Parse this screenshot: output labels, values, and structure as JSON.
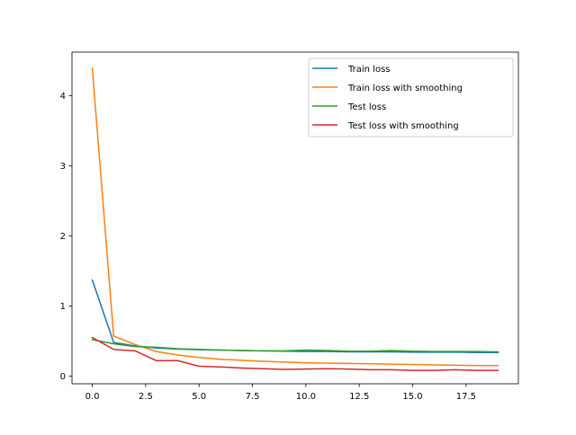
{
  "chart_data": {
    "type": "line",
    "title": "",
    "xlabel": "",
    "ylabel": "",
    "xlim": [
      -0.95,
      19.95
    ],
    "ylim": [
      -0.11,
      4.62
    ],
    "xticks": [
      0,
      2.5,
      5,
      7.5,
      10,
      12.5,
      15,
      17.5
    ],
    "xtick_labels": [
      "0.0",
      "2.5",
      "5.0",
      "7.5",
      "10.0",
      "12.5",
      "15.0",
      "17.5"
    ],
    "yticks": [
      0,
      1,
      2,
      3,
      4
    ],
    "ytick_labels": [
      "0",
      "1",
      "2",
      "3",
      "4"
    ],
    "grid": false,
    "legend_position": "top-right",
    "x": [
      0,
      1,
      2,
      3,
      4,
      5,
      6,
      7,
      8,
      9,
      10,
      11,
      12,
      13,
      14,
      15,
      16,
      17,
      18,
      19
    ],
    "series": [
      {
        "name": "Train loss",
        "color": "#1f77b4",
        "values": [
          1.37,
          0.48,
          0.43,
          0.4,
          0.385,
          0.375,
          0.37,
          0.365,
          0.36,
          0.355,
          0.35,
          0.35,
          0.345,
          0.345,
          0.345,
          0.34,
          0.34,
          0.34,
          0.335,
          0.335
        ]
      },
      {
        "name": "Train loss with smoothing",
        "color": "#ff7f0e",
        "values": [
          4.39,
          0.57,
          0.45,
          0.35,
          0.3,
          0.265,
          0.24,
          0.225,
          0.21,
          0.2,
          0.19,
          0.185,
          0.18,
          0.175,
          0.17,
          0.165,
          0.16,
          0.155,
          0.15,
          0.15
        ]
      },
      {
        "name": "Test loss",
        "color": "#2ca02c",
        "values": [
          0.52,
          0.46,
          0.42,
          0.41,
          0.39,
          0.38,
          0.37,
          0.365,
          0.36,
          0.36,
          0.37,
          0.365,
          0.355,
          0.355,
          0.365,
          0.355,
          0.35,
          0.35,
          0.35,
          0.345
        ]
      },
      {
        "name": "Test loss with smoothing",
        "color": "#d62728",
        "values": [
          0.55,
          0.38,
          0.36,
          0.22,
          0.22,
          0.14,
          0.13,
          0.115,
          0.105,
          0.095,
          0.1,
          0.105,
          0.1,
          0.09,
          0.09,
          0.08,
          0.08,
          0.09,
          0.08,
          0.08
        ]
      }
    ]
  }
}
